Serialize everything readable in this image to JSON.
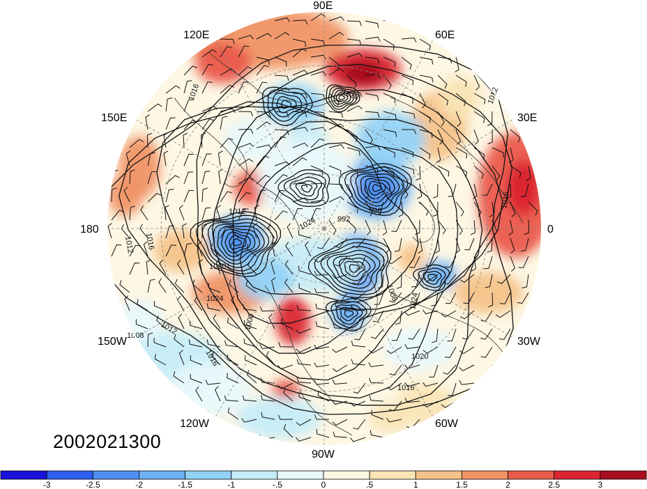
{
  "map": {
    "projection": "polar-stereographic",
    "hemisphere": "north",
    "longitude_labels": {
      "90e": "90E",
      "60e": "60E",
      "30e": "30E",
      "0": "0",
      "30w": "30W",
      "60w": "60W",
      "90w": "90W",
      "120w": "120W",
      "150w": "150W",
      "180": "180",
      "150e": "150E",
      "120e": "120E"
    },
    "isobar_labels": [
      "1012",
      "1016",
      "1020",
      "1024",
      "1008",
      "996",
      "992",
      "1000"
    ],
    "timestamp": "2002021300",
    "colors": {
      "ocean_background": "#fdf7e4",
      "coastline": "#333333",
      "isobar": "#111111",
      "wind_barb": "#111111",
      "lat_lon_grid": "#888888"
    }
  },
  "colorbar": {
    "ticks": [
      "-3",
      "-2.5",
      "-2",
      "-1.5",
      "-1",
      "-.5",
      "0",
      ".5",
      "1",
      "1.5",
      "2",
      "2.5",
      "3"
    ],
    "colors": [
      "#1a12d8",
      "#2f5ff2",
      "#4f8ff3",
      "#6cb1f4",
      "#93d2f7",
      "#c6ecf8",
      "#e8f8fb",
      "#fdf7e4",
      "#f9e4b5",
      "#f5c38a",
      "#f09466",
      "#ea5a4b",
      "#da2631",
      "#a70d1e"
    ]
  }
}
